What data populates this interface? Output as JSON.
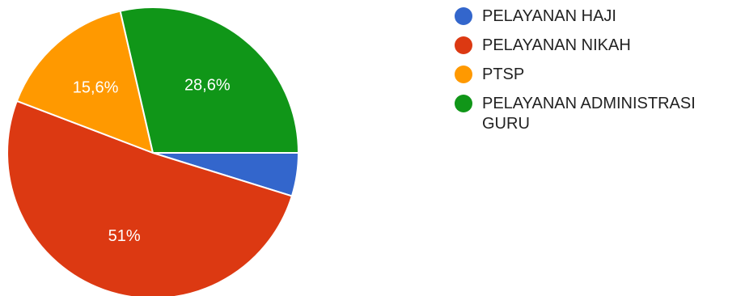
{
  "chart_data": {
    "type": "pie",
    "title": "",
    "series": [
      {
        "categories": [
          "PELAYANAN HAJI",
          "PELAYANAN NIKAH",
          "PTSP",
          "PELAYANAN ADMINISTRASI GURU"
        ],
        "values": [
          4.8,
          51,
          15.6,
          28.6
        ],
        "value_labels": [
          "",
          "51%",
          "15,6%",
          "28,6%"
        ],
        "colors": [
          "#3366cc",
          "#dc3912",
          "#ff9900",
          "#109618"
        ]
      }
    ],
    "legend_position": "right"
  }
}
